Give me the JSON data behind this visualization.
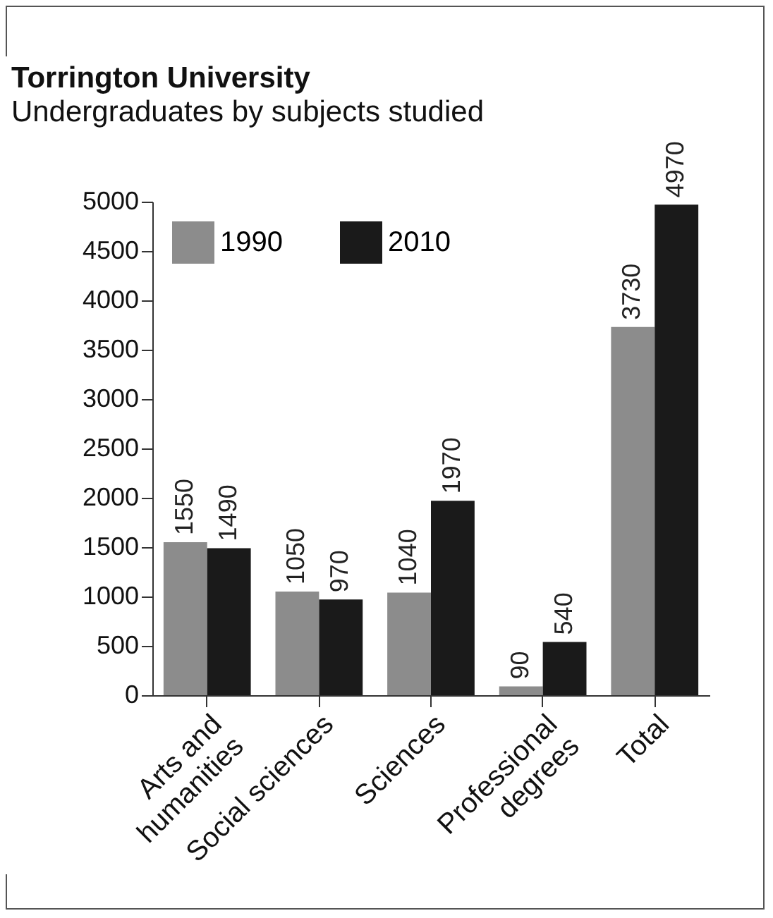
{
  "chart_data": {
    "type": "bar",
    "title": "Torrington University",
    "subtitle": "Undergraduates by subjects studied",
    "categories": [
      "Arts and humanities",
      "Social sciences",
      "Sciences",
      "Professional degrees",
      "Total"
    ],
    "series": [
      {
        "name": "1990",
        "color": "#8c8c8c",
        "values": [
          1550,
          1050,
          1040,
          90,
          3730
        ]
      },
      {
        "name": "2010",
        "color": "#1a1a1a",
        "values": [
          1490,
          970,
          1970,
          540,
          4970
        ]
      }
    ],
    "ylim": [
      0,
      5000
    ],
    "yticks": [
      0,
      500,
      1000,
      1500,
      2000,
      2500,
      3000,
      3500,
      4000,
      4500,
      5000
    ],
    "data_labels": true,
    "legend": "top left",
    "grid": false
  }
}
